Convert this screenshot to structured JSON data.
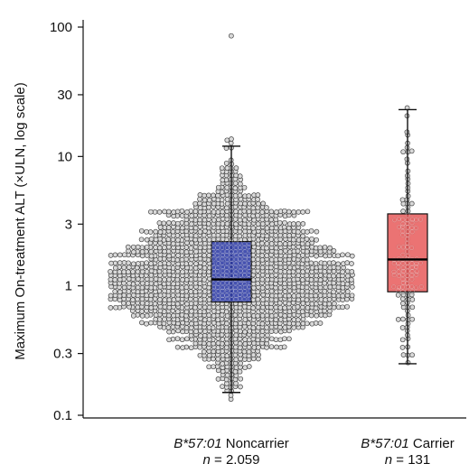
{
  "chart_data": {
    "type": "beeswarm-boxplot",
    "ylabel": "Maximum On-treatment ALT (×ULN, log scale)",
    "yscale": "log",
    "ylim": [
      0.1,
      100
    ],
    "yticks": [
      {
        "value": 0.1,
        "label": "0.1"
      },
      {
        "value": 0.3,
        "label": "0.3"
      },
      {
        "value": 1,
        "label": "1"
      },
      {
        "value": 3,
        "label": "3"
      },
      {
        "value": 10,
        "label": "10"
      },
      {
        "value": 30,
        "label": "30"
      },
      {
        "value": 100,
        "label": "100"
      }
    ],
    "groups": [
      {
        "allele": "B*57:01",
        "status": "Noncarrier",
        "n_label": "n",
        "n_value": "= 2,059",
        "n": 2059,
        "box": {
          "q1": 0.75,
          "median": 1.12,
          "q3": 2.2,
          "whisker_low": 0.15,
          "whisker_high": 12
        },
        "range": {
          "min": 0.13,
          "max": 85
        },
        "box_color": "#2b3aa8",
        "dot_color": "#444444"
      },
      {
        "allele": "B*57:01",
        "status": "Carrier",
        "n_label": "n",
        "n_value": "= 131",
        "n": 131,
        "box": {
          "q1": 0.9,
          "median": 1.6,
          "q3": 3.6,
          "whisker_low": 0.25,
          "whisker_high": 23
        },
        "range": {
          "min": 0.25,
          "max": 23
        },
        "box_color": "#e85a5a",
        "dot_color": "#444444"
      }
    ]
  }
}
